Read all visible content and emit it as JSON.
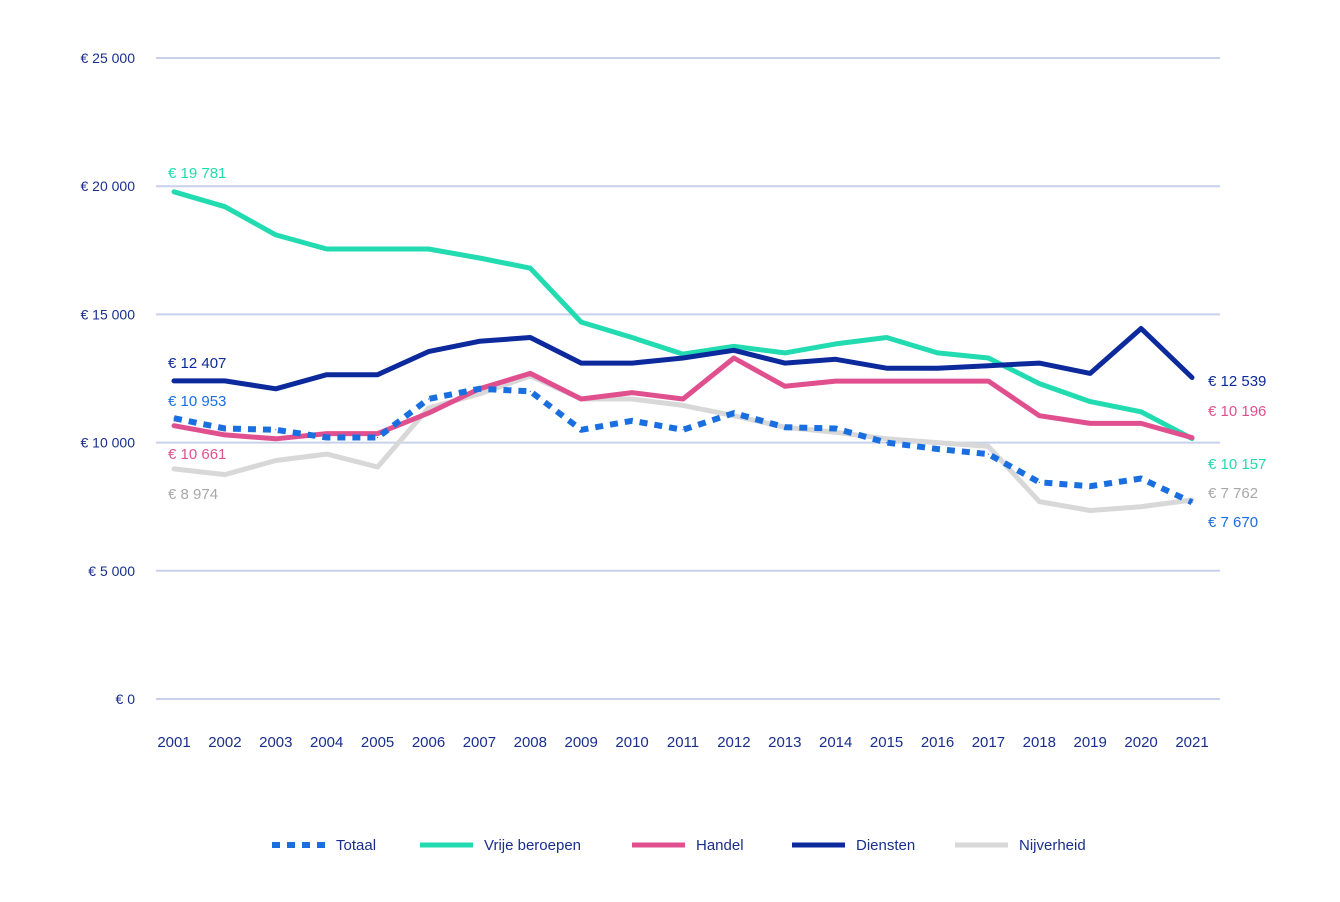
{
  "chart_data": {
    "type": "line",
    "title": "",
    "xlabel": "",
    "ylabel": "",
    "ylim": [
      0,
      25000
    ],
    "yticks": [
      {
        "value": 0,
        "label": "€ 0"
      },
      {
        "value": 5000,
        "label": "€ 5 000"
      },
      {
        "value": 10000,
        "label": "€ 10 000"
      },
      {
        "value": 15000,
        "label": "€ 15 000"
      },
      {
        "value": 20000,
        "label": "€ 20 000"
      },
      {
        "value": 25000,
        "label": "€ 25 000"
      }
    ],
    "grid": true,
    "legend_position": "bottom",
    "x": [
      "2001",
      "2002",
      "2003",
      "2004",
      "2005",
      "2006",
      "2007",
      "2008",
      "2009",
      "2010",
      "2011",
      "2012",
      "2013",
      "2014",
      "2015",
      "2016",
      "2017",
      "2018",
      "2019",
      "2020",
      "2021"
    ],
    "series": [
      {
        "name": "Totaal",
        "color": "#1a6fe0",
        "dashed": true,
        "values": [
          10953,
          10550,
          10500,
          10200,
          10200,
          11700,
          12100,
          12000,
          10500,
          10850,
          10500,
          11150,
          10600,
          10550,
          10000,
          9750,
          9550,
          8450,
          8300,
          8600,
          7670
        ],
        "start_label": "€ 10 953",
        "end_label": "€ 7 670"
      },
      {
        "name": "Vrije beroepen",
        "color": "#22dbb0",
        "dashed": false,
        "values": [
          19781,
          19200,
          18100,
          17550,
          17550,
          17550,
          17200,
          16800,
          14700,
          14100,
          13450,
          13750,
          13500,
          13850,
          14100,
          13500,
          13300,
          12300,
          11600,
          11200,
          10157
        ],
        "start_label": "€ 19 781",
        "end_label": "€ 10 157"
      },
      {
        "name": "Handel",
        "color": "#e0508f",
        "dashed": false,
        "values": [
          10661,
          10300,
          10150,
          10350,
          10350,
          11150,
          12100,
          12700,
          11700,
          11950,
          11700,
          13300,
          12200,
          12400,
          12400,
          12400,
          12400,
          11050,
          10750,
          10750,
          10196
        ],
        "start_label": "€ 10 661",
        "end_label": "€ 10 196"
      },
      {
        "name": "Diensten",
        "color": "#0d2a9c",
        "dashed": false,
        "values": [
          12407,
          12407,
          12100,
          12650,
          12650,
          13550,
          13950,
          14100,
          13100,
          13100,
          13300,
          13600,
          13100,
          13250,
          12900,
          12900,
          13000,
          13100,
          12700,
          14450,
          12539
        ],
        "start_label": "€ 12 407",
        "end_label": "€ 12 539"
      },
      {
        "name": "Nijverheid",
        "color": "#d8d8d8",
        "dashed": false,
        "values": [
          8974,
          8750,
          9300,
          9550,
          9050,
          11350,
          11900,
          12600,
          11700,
          11700,
          11450,
          11050,
          10600,
          10400,
          10150,
          10000,
          9850,
          7700,
          7350,
          7500,
          7762
        ],
        "start_label": "€ 8 974",
        "end_label": "€ 7 762"
      }
    ]
  }
}
